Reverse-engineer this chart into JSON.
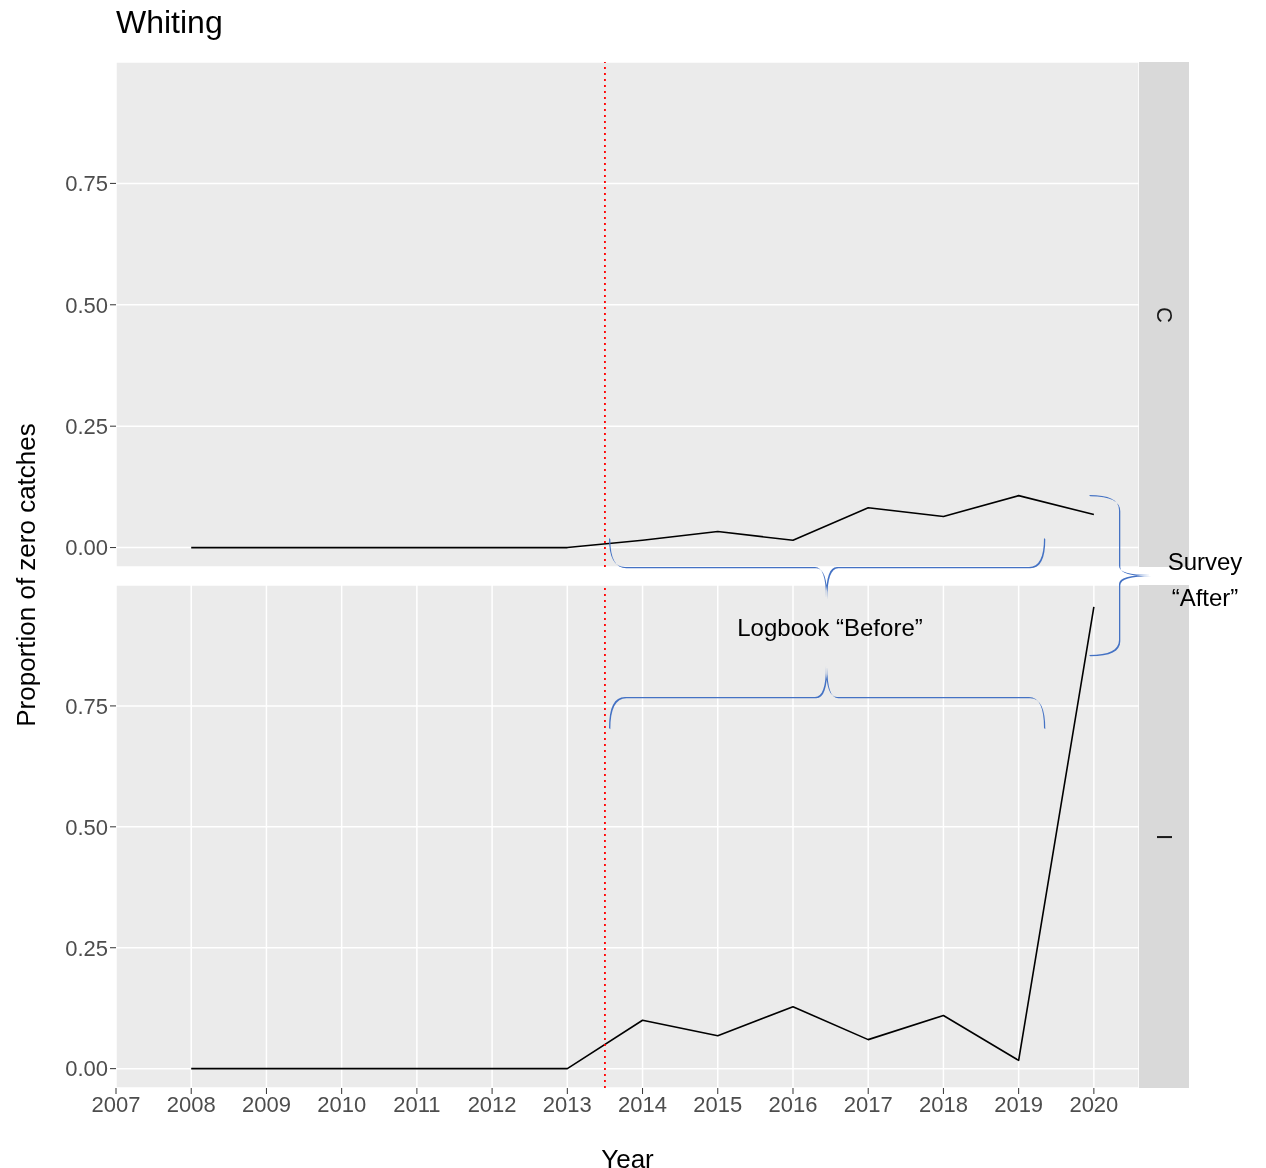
{
  "chart_data": [
    {
      "type": "line",
      "title": "Whiting",
      "ylabel": "Proportion of zero catches",
      "x": [
        2008,
        2009,
        2010,
        2011,
        2012,
        2013,
        2014,
        2015,
        2016,
        2017,
        2018,
        2019,
        2020
      ],
      "series": [
        {
          "color": "#000000",
          "values": [
            0,
            0,
            0,
            0,
            0,
            0,
            0.015,
            0.033,
            0.015,
            0.082,
            0.064,
            0.107,
            0.068
          ]
        }
      ],
      "xlim": [
        2007,
        2020.6
      ],
      "xticks": [
        2007,
        2008,
        2009,
        2010,
        2011,
        2012,
        2013,
        2014,
        2015,
        2016,
        2017,
        2018,
        2019,
        2020
      ],
      "ylim": [
        -0.04,
        1.0
      ],
      "yticks": [
        {
          "value": 0,
          "label": "0.00"
        },
        {
          "value": 0.25,
          "label": "0.25"
        },
        {
          "value": 0.5,
          "label": "0.50"
        },
        {
          "value": 0.75,
          "label": "0.75"
        }
      ],
      "ref_lines": [
        {
          "axis": "x",
          "value": 2013.5,
          "color": "#ff0000",
          "line_style": "dotted"
        }
      ],
      "annotations": [
        "C",
        "Logbook “Before”",
        "Survey “After”"
      ],
      "grid": true,
      "tick_labels": "y",
      "legend": false,
      "marker": "none"
    },
    {
      "type": "line",
      "xlabel": "Year",
      "x": [
        2008,
        2009,
        2010,
        2011,
        2012,
        2013,
        2014,
        2015,
        2016,
        2017,
        2018,
        2019,
        2020
      ],
      "series": [
        {
          "color": "#000000",
          "values": [
            0,
            0,
            0,
            0,
            0,
            0,
            0.1,
            0.068,
            0.128,
            0.06,
            0.11,
            0.017,
            0.955
          ]
        }
      ],
      "xlim": [
        2007,
        2020.6
      ],
      "xticks": [
        2007,
        2008,
        2009,
        2010,
        2011,
        2012,
        2013,
        2014,
        2015,
        2016,
        2017,
        2018,
        2019,
        2020
      ],
      "ylim": [
        -0.04,
        1.0
      ],
      "yticks": [
        {
          "value": 0,
          "label": "0.00"
        },
        {
          "value": 0.25,
          "label": "0.25"
        },
        {
          "value": 0.5,
          "label": "0.50"
        },
        {
          "value": 0.75,
          "label": "0.75"
        }
      ],
      "ref_lines": [
        {
          "axis": "x",
          "value": 2013.5,
          "color": "#ff0000",
          "line_style": "dotted"
        }
      ],
      "annotations": [
        "I"
      ],
      "grid": true,
      "legend": false,
      "marker": "none"
    }
  ]
}
